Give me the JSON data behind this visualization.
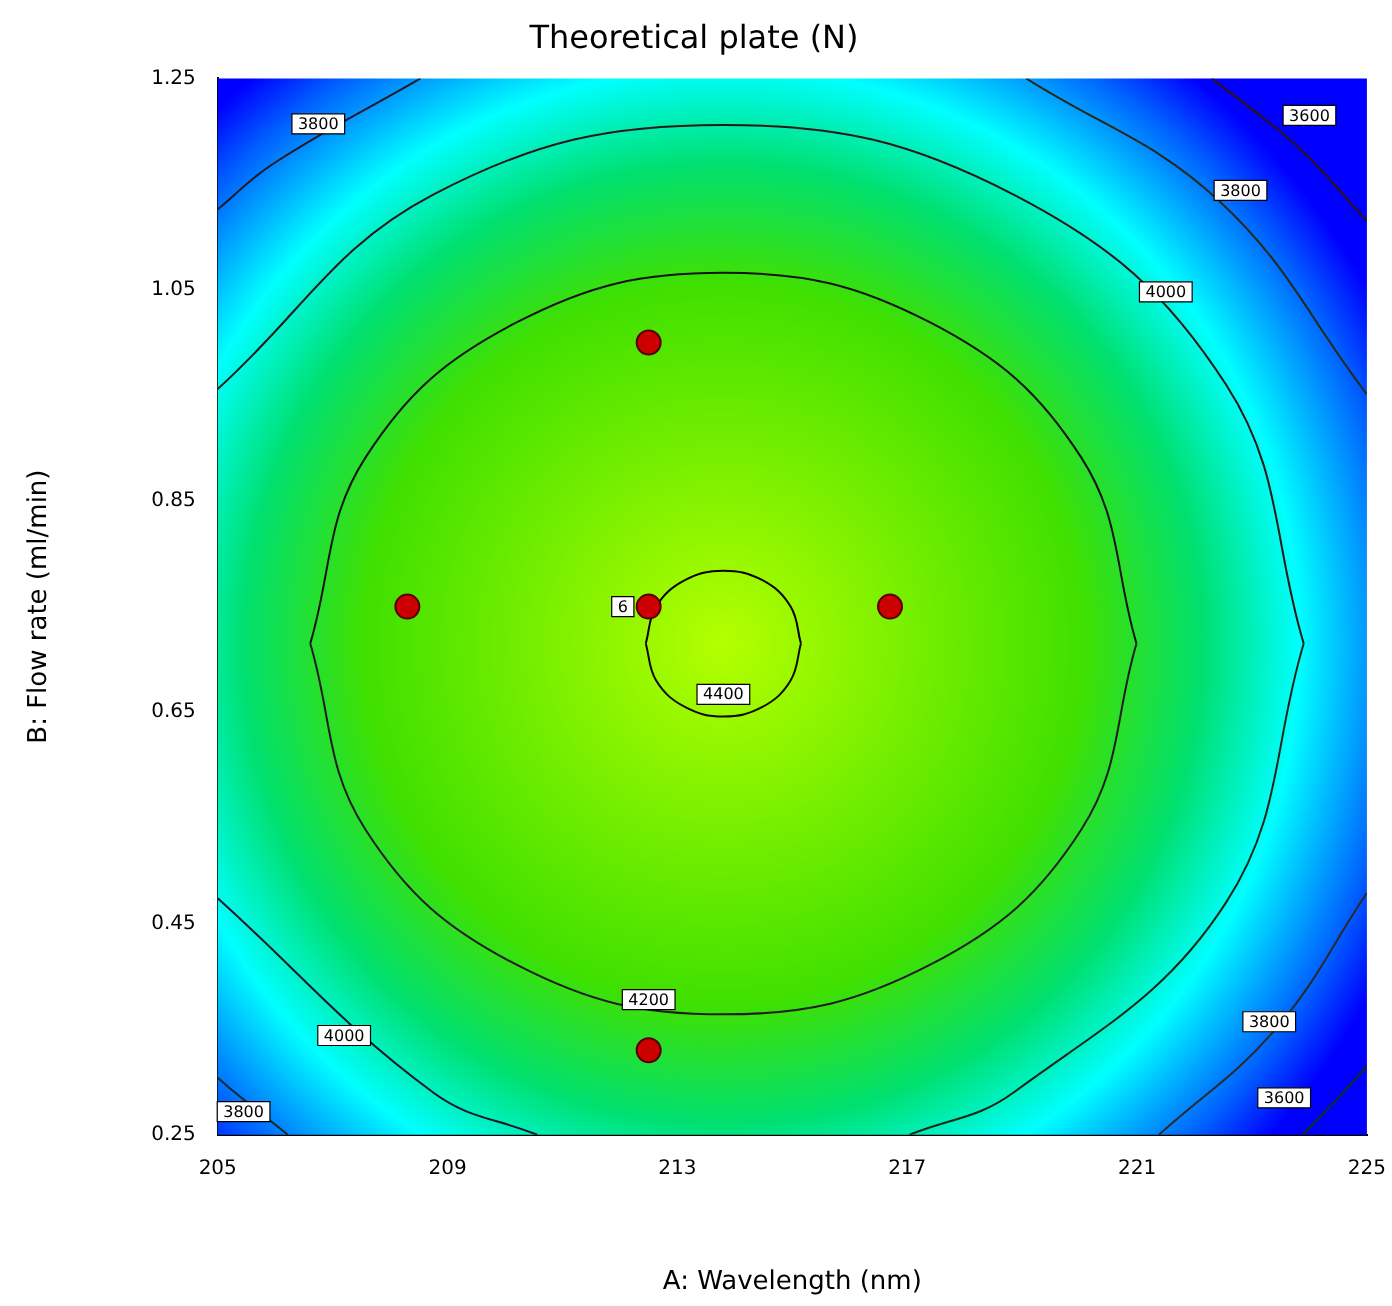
{
  "chart_data": {
    "type": "scatter",
    "title": "Theoretical plate (N)",
    "xlabel": "A: Wavelength (nm)",
    "ylabel": "B: Flow rate (ml/min)",
    "xlim": [
      205,
      225
    ],
    "xticks": [
      205,
      209,
      213,
      217,
      221,
      225
    ],
    "ylim": [
      0.25,
      1.25
    ],
    "yticks": [
      0.25,
      0.45,
      0.65,
      0.85,
      1.05,
      1.25
    ],
    "grid": false,
    "legend": false,
    "series": [
      {
        "marker": "circle",
        "color": "#cc0000",
        "x": [
          208.3,
          212.5,
          216.7,
          212.5,
          212.5
        ],
        "values": [
          0.75,
          0.75,
          0.75,
          1.0,
          0.33
        ]
      },
      {
        "type": "line",
        "marker": "none",
        "color": "#000000",
        "x": [
          212.45,
          212.63,
          213.13,
          213.8,
          214.48,
          214.97,
          215.15
        ],
        "values": [
          0.715,
          0.75,
          0.775,
          0.784,
          0.775,
          0.75,
          0.715
        ]
      },
      {
        "type": "line",
        "marker": "none",
        "color": "#0a0a0a",
        "x": [
          212.45,
          212.63,
          213.13,
          213.8,
          214.48,
          214.97,
          215.15
        ],
        "values": [
          0.715,
          0.68,
          0.655,
          0.646,
          0.655,
          0.68,
          0.715
        ]
      },
      {
        "type": "line",
        "marker": "none",
        "color": "#141414",
        "x": [
          206.61,
          207.57,
          210.2,
          213.8,
          217.4,
          220.03,
          220.99
        ],
        "values": [
          0.715,
          0.891,
          1.019,
          1.066,
          1.019,
          0.891,
          0.715
        ]
      },
      {
        "type": "line",
        "marker": "none",
        "color": "#1e1e1e",
        "x": [
          206.61,
          207.57,
          210.2,
          213.8,
          217.4,
          220.03,
          220.99
        ],
        "values": [
          0.715,
          0.539,
          0.411,
          0.364,
          0.411,
          0.539,
          0.715
        ]
      },
      {
        "type": "line",
        "marker": "none",
        "color": "#281818",
        "x": [
          205,
          208.75,
          213.8,
          218.85,
          222.55,
          223.9
        ],
        "values": [
          0.956,
          1.14,
          1.206,
          1.14,
          0.96,
          0.715
        ]
      },
      {
        "type": "line",
        "marker": "none",
        "color": "#182818",
        "x": [
          217.04,
          218.85,
          222.55,
          223.9
        ],
        "values": [
          0.25,
          0.29,
          0.47,
          0.715
        ]
      },
      {
        "type": "line",
        "marker": "none",
        "color": "#181828",
        "x": [
          205,
          208.75,
          210.56
        ],
        "values": [
          0.474,
          0.29,
          0.25
        ]
      },
      {
        "type": "line",
        "marker": "none",
        "color": "#282818",
        "x": [
          219.07,
          222.43,
          225
        ],
        "values": [
          1.25,
          1.134,
          0.951
        ]
      },
      {
        "type": "line",
        "marker": "none",
        "color": "#281828",
        "x": [
          205,
          205.96,
          208.53
        ],
        "values": [
          1.126,
          1.169,
          1.25
        ]
      },
      {
        "type": "line",
        "marker": "none",
        "color": "#182828",
        "x": [
          205,
          205.3,
          206.22
        ],
        "values": [
          0.304,
          0.29,
          0.25
        ]
      },
      {
        "type": "line",
        "marker": "none",
        "color": "#2a2a2a",
        "x": [
          221.38,
          223.41,
          225
        ],
        "values": [
          0.25,
          0.35,
          0.479
        ]
      },
      {
        "type": "line",
        "marker": "none",
        "color": "#301010",
        "x": [
          222.3,
          223.8,
          225
        ],
        "values": [
          1.25,
          1.185,
          1.115
        ]
      },
      {
        "type": "line",
        "marker": "none",
        "color": "#103010",
        "x": [
          223.88,
          224.5,
          225
        ],
        "values": [
          0.25,
          0.285,
          0.315
        ]
      }
    ],
    "annotations": [
      {
        "text": "4400",
        "x": 213.8,
        "y": 0.667
      },
      {
        "text": "4200",
        "x": 212.5,
        "y": 0.378
      },
      {
        "text": "4000",
        "x": 221.5,
        "y": 1.048
      },
      {
        "text": "4000",
        "x": 207.2,
        "y": 0.344
      },
      {
        "text": "3800",
        "x": 206.75,
        "y": 1.207
      },
      {
        "text": "3800",
        "x": 222.8,
        "y": 1.144
      },
      {
        "text": "3800",
        "x": 223.3,
        "y": 0.357
      },
      {
        "text": "3800",
        "x": 205.45,
        "y": 0.272
      },
      {
        "text": "3600",
        "x": 224.0,
        "y": 1.215
      },
      {
        "text": "3600",
        "x": 223.56,
        "y": 0.285
      },
      {
        "text": "6",
        "x": 212.05,
        "y": 0.75
      }
    ]
  }
}
